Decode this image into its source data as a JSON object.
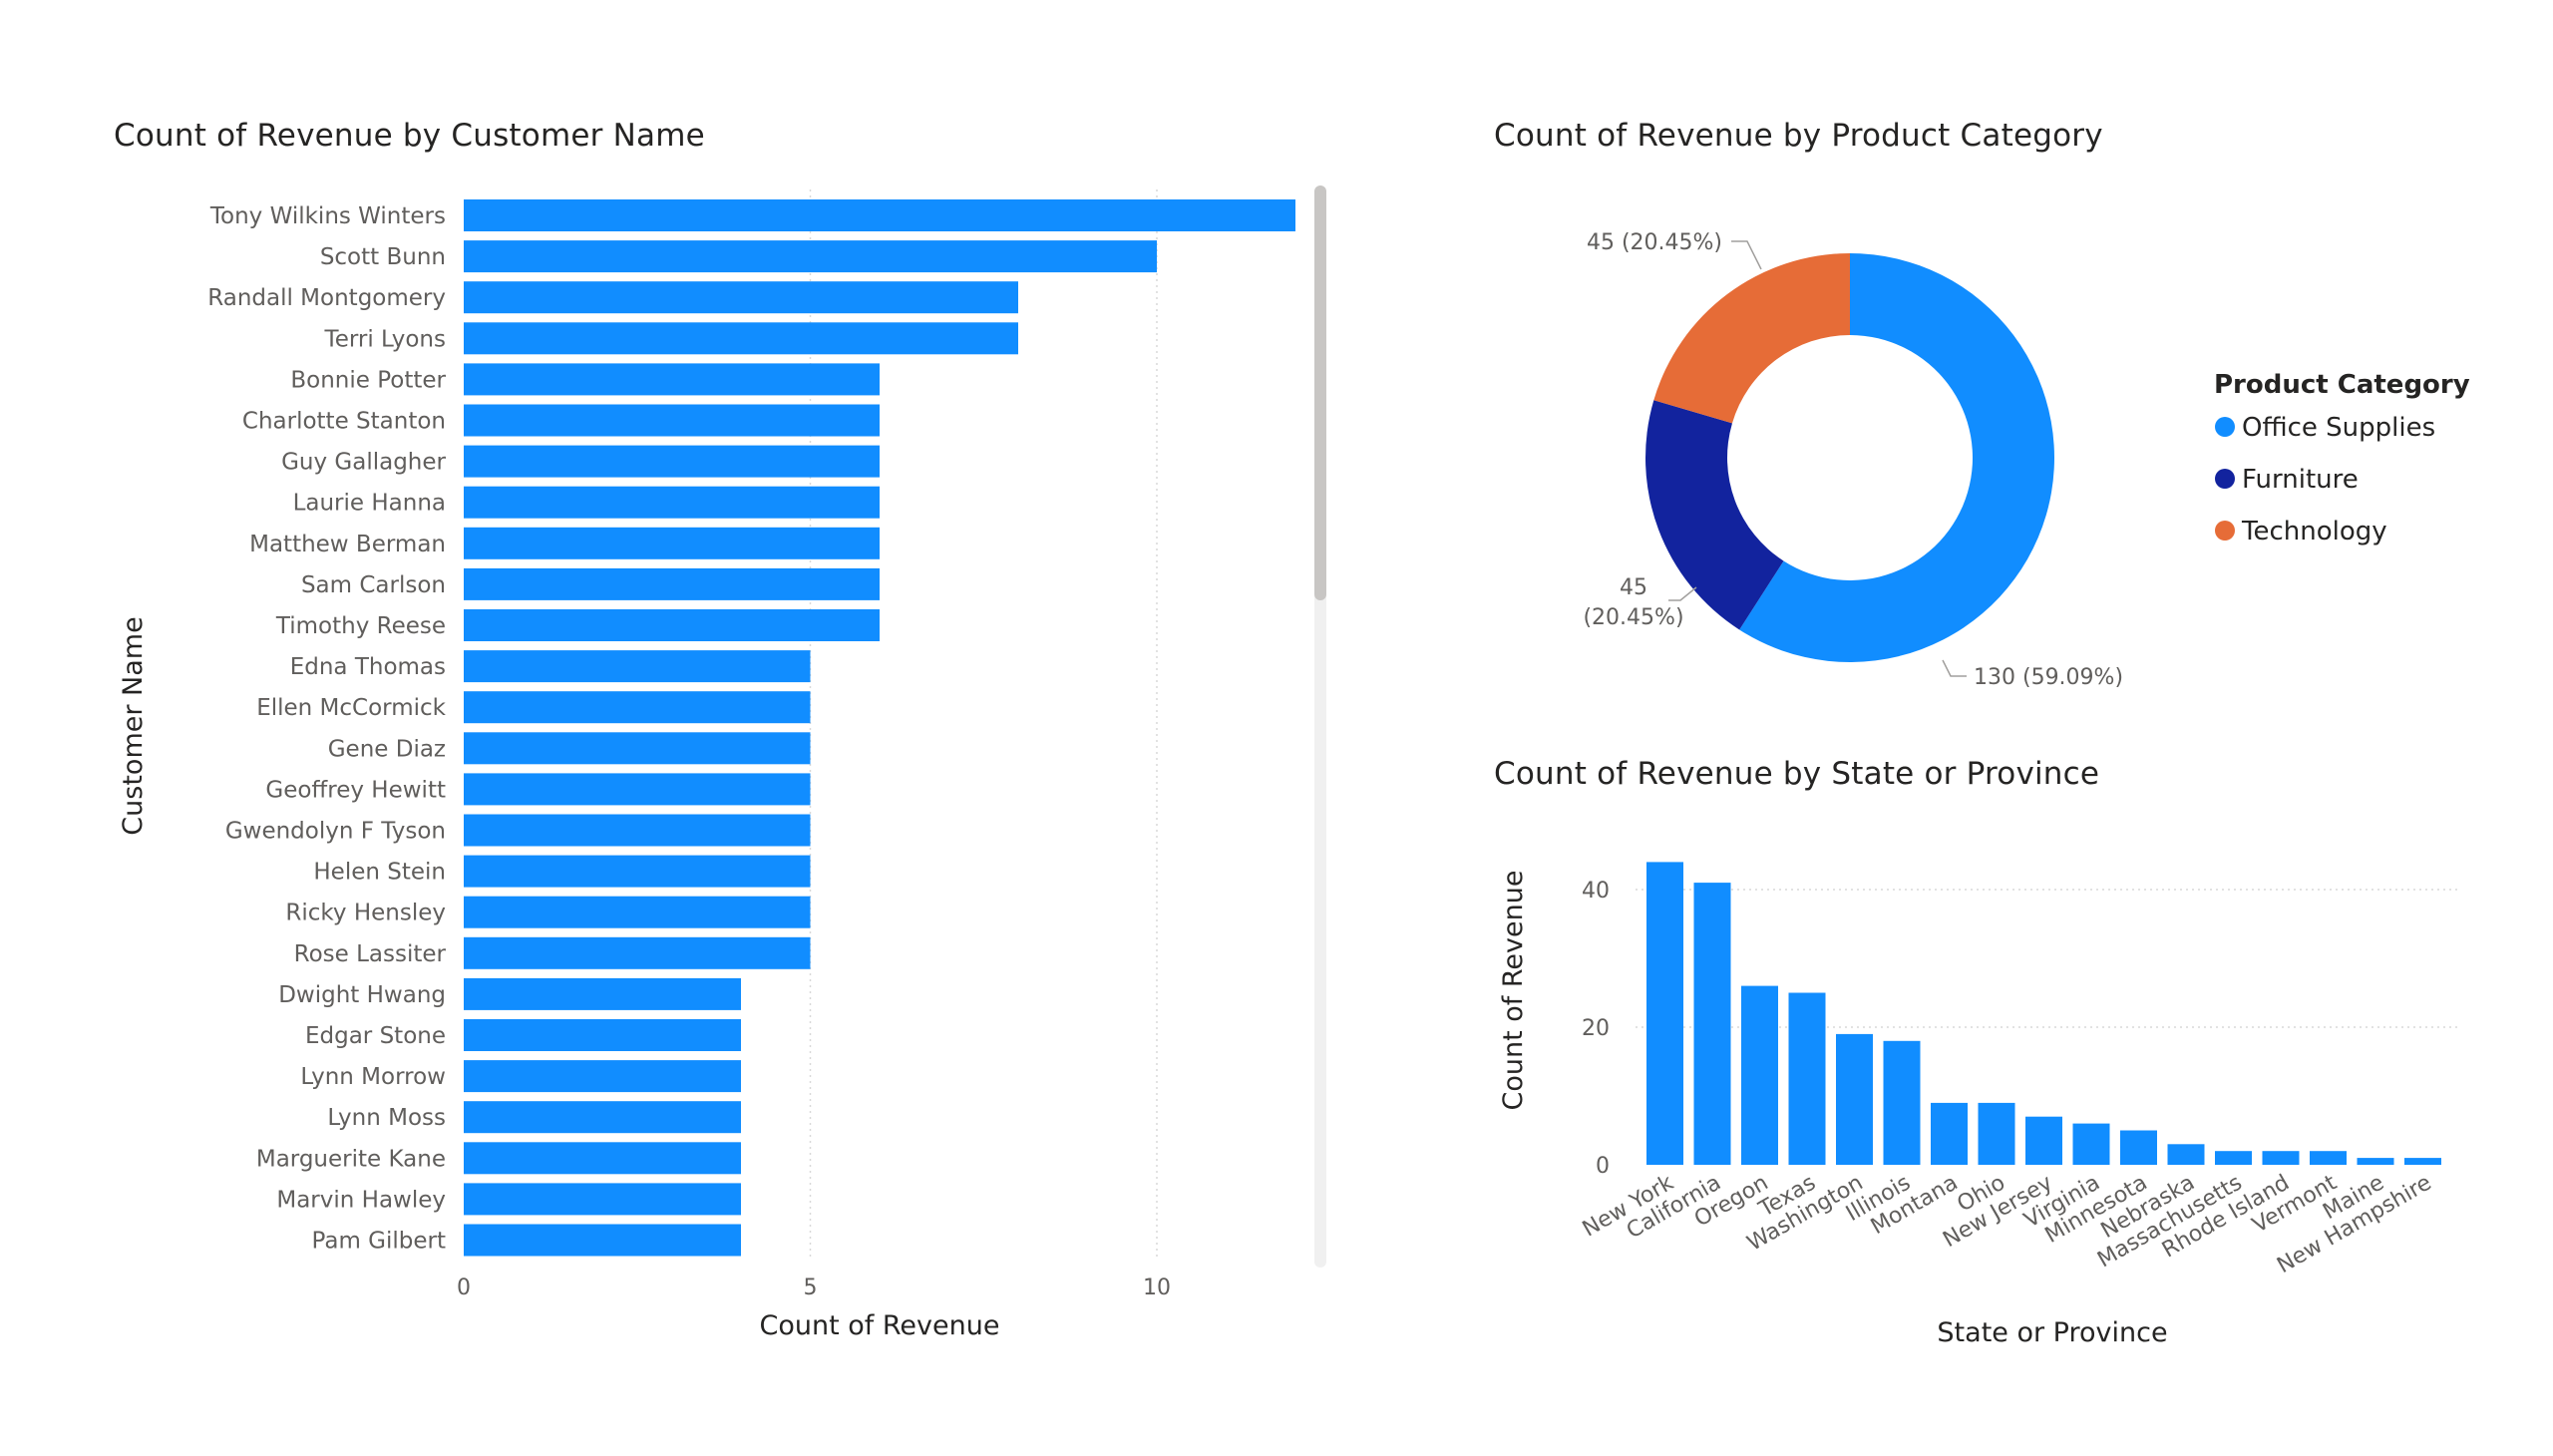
{
  "charts": {
    "customer": {
      "title": "Count of Revenue by Customer Name",
      "chart_data": {
        "type": "bar",
        "orientation": "horizontal",
        "categories": [
          "Tony Wilkins Winters",
          "Scott Bunn",
          "Randall Montgomery",
          "Terri Lyons",
          "Bonnie Potter",
          "Charlotte Stanton",
          "Guy Gallagher",
          "Laurie Hanna",
          "Matthew Berman",
          "Sam Carlson",
          "Timothy Reese",
          "Edna Thomas",
          "Ellen McCormick",
          "Gene Diaz",
          "Geoffrey Hewitt",
          "Gwendolyn F Tyson",
          "Helen Stein",
          "Ricky Hensley",
          "Rose Lassiter",
          "Dwight Hwang",
          "Edgar Stone",
          "Lynn Morrow",
          "Lynn Moss",
          "Marguerite Kane",
          "Marvin Hawley",
          "Pam Gilbert"
        ],
        "values": [
          12,
          10,
          8,
          8,
          6,
          6,
          6,
          6,
          6,
          6,
          6,
          5,
          5,
          5,
          5,
          5,
          5,
          5,
          5,
          4,
          4,
          4,
          4,
          4,
          4,
          4
        ],
        "xlabel": "Count of Revenue",
        "ylabel": "Customer Name",
        "xticks": [
          0,
          5,
          10
        ],
        "xlim": [
          0,
          12
        ],
        "grid": true,
        "color": "#118DFF"
      }
    },
    "category": {
      "title": "Count of Revenue by Product Category",
      "chart_data": {
        "type": "pie",
        "donut": true,
        "categories": [
          "Office Supplies",
          "Furniture",
          "Technology"
        ],
        "values": [
          130,
          45,
          45
        ],
        "labels": [
          "130 (59.09%)",
          "45 (20.45%)",
          "45 (20.45%)"
        ],
        "colors": [
          "#118DFF",
          "#12239E",
          "#E66C37"
        ],
        "legend_title": "Product Category",
        "legend_position": "right"
      }
    },
    "state": {
      "title": "Count of Revenue by State or Province",
      "chart_data": {
        "type": "bar",
        "orientation": "vertical",
        "categories": [
          "New York",
          "California",
          "Oregon",
          "Texas",
          "Washington",
          "Illinois",
          "Montana",
          "Ohio",
          "New Jersey",
          "Virginia",
          "Minnesota",
          "Nebraska",
          "Massachusetts",
          "Rhode Island",
          "Vermont",
          "Maine",
          "New Hampshire"
        ],
        "values": [
          44,
          41,
          26,
          25,
          19,
          18,
          9,
          9,
          7,
          6,
          5,
          3,
          2,
          2,
          2,
          1,
          1
        ],
        "xlabel": "State or Province",
        "ylabel": "Count of Revenue",
        "yticks": [
          0,
          20,
          40
        ],
        "ylim": [
          0,
          46
        ],
        "grid": true,
        "color": "#118DFF"
      }
    }
  }
}
